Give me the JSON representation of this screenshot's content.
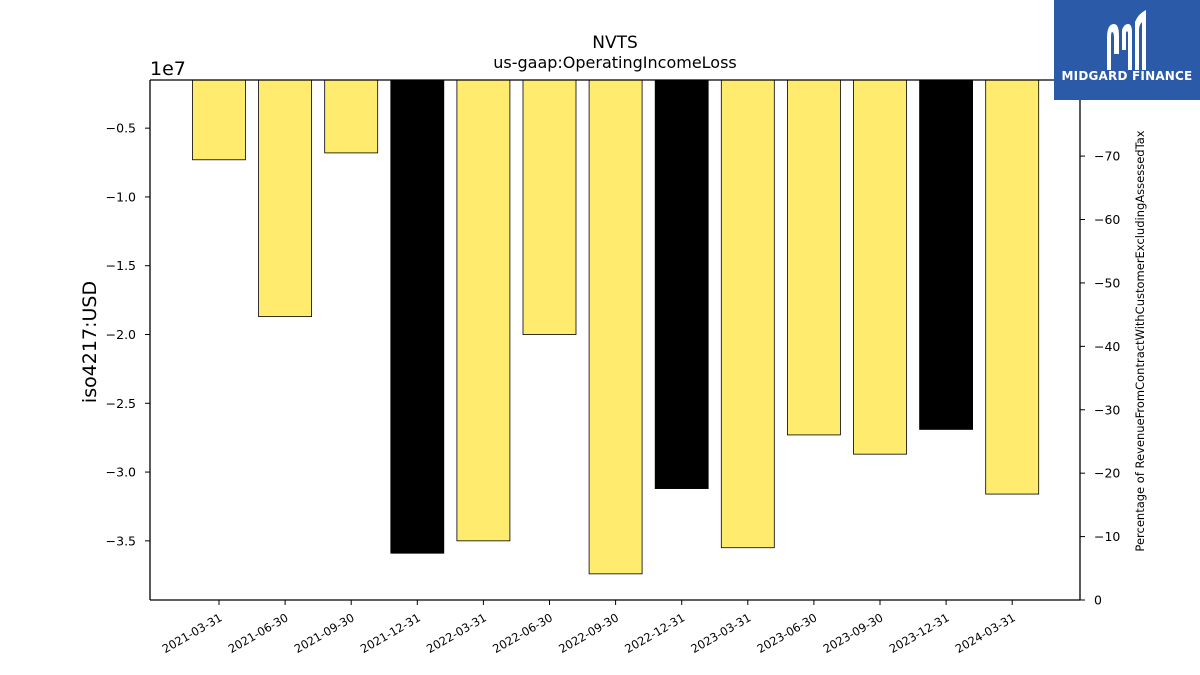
{
  "chart_data": {
    "type": "bar",
    "title": "NVTS",
    "subtitle": "us-gaap:OperatingIncomeLoss",
    "ylabel": "iso4217:USD",
    "y_offset_label": "1e7",
    "y2label": "Percentage of RevenueFromContractWithCustomerExcludingAssessedTax",
    "categories": [
      "2021-03-31",
      "2021-06-30",
      "2021-09-30",
      "2021-12-31",
      "2022-03-31",
      "2022-06-30",
      "2022-09-30",
      "2022-12-31",
      "2023-03-31",
      "2023-06-30",
      "2023-09-30",
      "2023-12-31",
      "2024-03-31"
    ],
    "values": [
      -7300000,
      -18700000,
      -6800000,
      -35900000,
      -35000000,
      -20000000,
      -37400000,
      -31200000,
      -35500000,
      -27300000,
      -28700000,
      -26900000,
      -31600000
    ],
    "bar_colors": [
      "#ffec6e",
      "#ffec6e",
      "#ffec6e",
      "#000000",
      "#ffec6e",
      "#ffec6e",
      "#ffec6e",
      "#000000",
      "#ffec6e",
      "#ffec6e",
      "#ffec6e",
      "#000000",
      "#ffec6e"
    ],
    "ylim": [
      -39300000,
      -1500000
    ],
    "yticks": [
      -5000000,
      -10000000,
      -15000000,
      -20000000,
      -25000000,
      -30000000,
      -35000000
    ],
    "ytick_labels": [
      "−0.5",
      "−1.0",
      "−1.5",
      "−2.0",
      "−2.5",
      "−3.0",
      "−3.5"
    ],
    "y2lim": [
      0,
      -82
    ],
    "y2ticks": [
      0,
      -10,
      -20,
      -30,
      -40,
      -50,
      -60,
      -70
    ],
    "y2tick_labels": [
      "0",
      "−10",
      "−20",
      "−30",
      "−40",
      "−50",
      "−60",
      "−70"
    ],
    "grid": false,
    "legend": "none"
  },
  "logo": {
    "text": "MIDGARD FINANCE",
    "bg_color": "#2b5aa8"
  }
}
